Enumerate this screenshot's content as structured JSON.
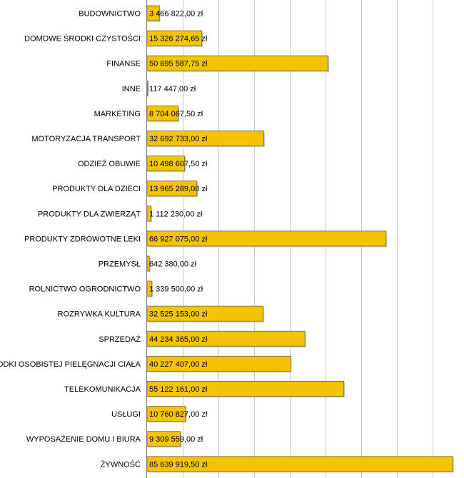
{
  "chart_data": {
    "type": "bar",
    "orientation": "horizontal",
    "title": "",
    "xlabel": "",
    "ylabel": "",
    "grid": true,
    "bar_color": "#f5c400",
    "bar_edge_color": "#8a7a3a",
    "grid_color": "#c8c8c8",
    "xlim": [
      0,
      90000000
    ],
    "categories": [
      "BUDOWNICTWO",
      "DOMOWE ŚRODKI CZYSTOŚCI",
      "FINANSE",
      "INNE",
      "MARKETING",
      "MOTORYZACJA TRANSPORT",
      "ODZIEŻ OBUWIE",
      "PRODUKTY DLA DZIECI",
      "PRODUKTY DLA ZWIERZĄT",
      "PRODUKTY ZDROWOTNE LEKI",
      "PRZEMYSŁ",
      "ROLNICTWO OGRODNICTWO",
      "ROZRYWKA KULTURA",
      "SPRZEDAŻ",
      "ŚRODKI OSOBISTEJ PIELĘGNACJI CIAŁA",
      "TELEKOMUNIKACJA",
      "USŁUGI",
      "WYPOSAŻENIE DOMU I BIURA",
      "ŻYWNOŚĆ"
    ],
    "values": [
      3466822.0,
      15326274.65,
      50695587.75,
      117447.0,
      8704067.5,
      32692733.0,
      10498607.5,
      13965289.0,
      1112230.0,
      66927075.0,
      642380.0,
      1339500.0,
      32525153.0,
      44234365.0,
      40227407.0,
      55122161.0,
      10760827.0,
      9309559.0,
      85639919.5
    ],
    "value_labels": [
      "3 466 822,00 zł",
      "15 326 274,65 zł",
      "50 695 587,75 zł",
      "117 447,00 zł",
      "8 704 067,50 zł",
      "32 692 733,00 zł",
      "10 498 607,50 zł",
      "13 965 289,00 zł",
      "1 112 230,00 zł",
      "66 927 075,00 zł",
      "642 380,00 zł",
      "1 339 500,00 zł",
      "32 525 153,00 zł",
      "44 234 365,00 zł",
      "40 227 407,00 zł",
      "55 122 161,00 zł",
      "10 760 827,00 zł",
      "9 309 559,00 zł",
      "85 639 919,50 zł"
    ],
    "grid_step": 10000000
  }
}
